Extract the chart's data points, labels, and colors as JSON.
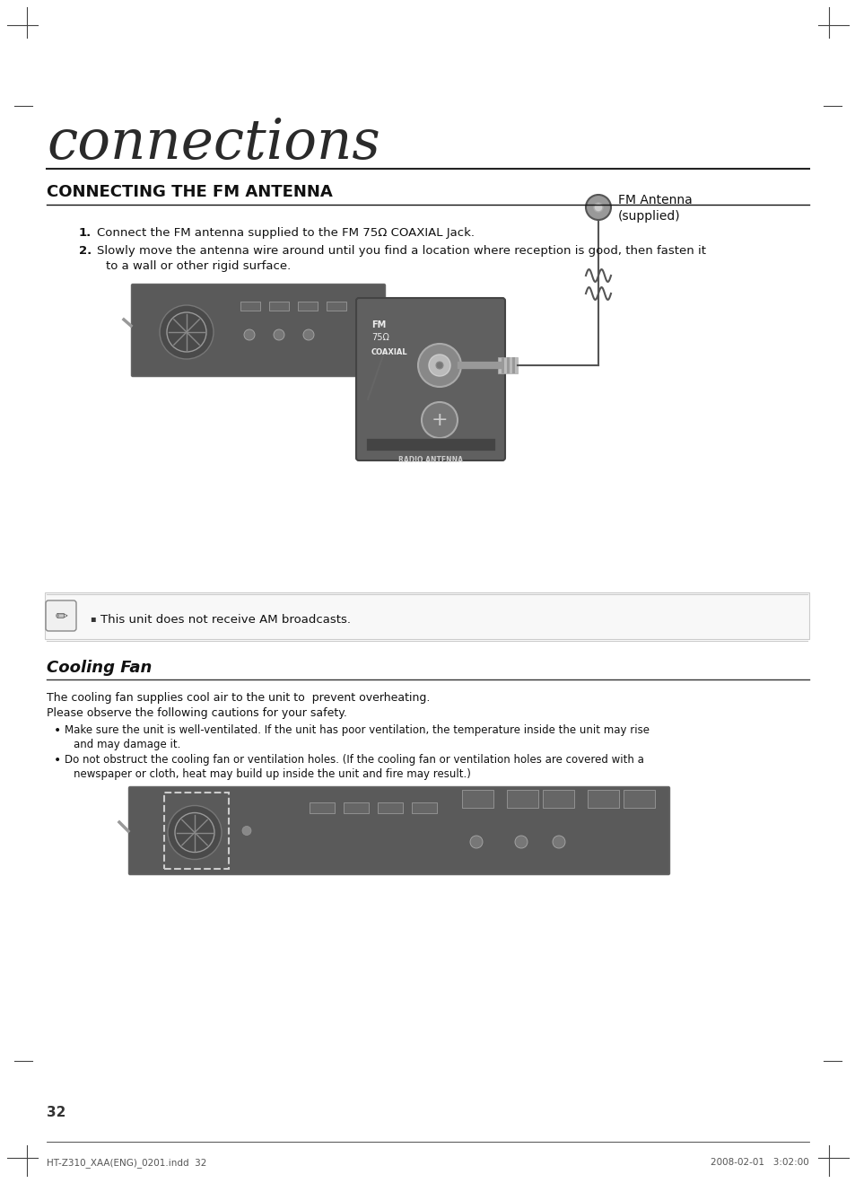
{
  "bg_color": "#ffffff",
  "page_title": "connections",
  "section1_title": "CONNECTING THE FM ANTENNA",
  "step1": "Connect the FM antenna supplied to the FM 75Ω COAXIAL Jack.",
  "step2_a": "Slowly move the antenna wire around until you find a location where reception is good, then fasten it",
  "step2_b": "to a wall or other rigid surface.",
  "note_text": "This unit does not receive AM broadcasts.",
  "section2_title": "Cooling Fan",
  "cooling_intro1": "The cooling fan supplies cool air to the unit to  prevent overheating.",
  "cooling_intro2": "Please observe the following cautions for your safety.",
  "bullet1a": "Make sure the unit is well-ventilated. If the unit has poor ventilation, the temperature inside the unit may rise",
  "bullet1b": "and may damage it.",
  "bullet2a": "Do not obstruct the cooling fan or ventilation holes. (If the cooling fan or ventilation holes are covered with a",
  "bullet2b": "newspaper or cloth, heat may build up inside the unit and fire may result.)",
  "fm_antenna_label_1": "FM Antenna",
  "fm_antenna_label_2": "(supplied)",
  "page_number": "32",
  "footer_left": "HT-Z310_XAA(ENG)_0201.indd  32",
  "footer_right": "2008-02-01   3:02:00"
}
